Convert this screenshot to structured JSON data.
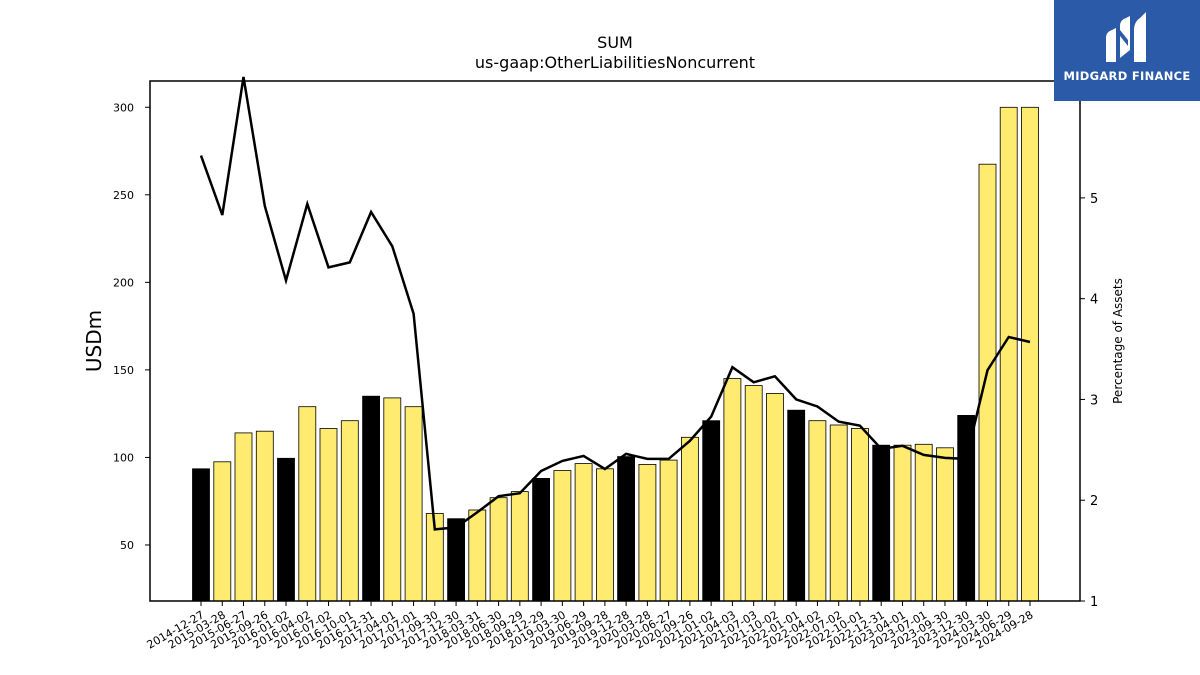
{
  "chart_data": {
    "type": "bar",
    "title_lines": [
      "SUM",
      "us-gaap:OtherLiabilitiesNoncurrent"
    ],
    "ylabel": "USDm",
    "ylabel_right": "Percentage of Assets",
    "ylim": [
      18,
      315
    ],
    "ylim_right": [
      1,
      6.16
    ],
    "yticks": [
      50,
      100,
      150,
      200,
      250,
      300
    ],
    "yticks_right": [
      1,
      2,
      3,
      4,
      5
    ],
    "grid": false,
    "categories": [
      "2014-12-27",
      "2015-03-28",
      "2015-06-27",
      "2015-09-26",
      "2016-01-02",
      "2016-04-02",
      "2016-07-02",
      "2016-10-01",
      "2016-12-31",
      "2017-04-01",
      "2017-07-01",
      "2017-09-30",
      "2017-12-30",
      "2018-03-31",
      "2018-06-30",
      "2018-09-29",
      "2018-12-29",
      "2019-03-30",
      "2019-06-29",
      "2019-09-28",
      "2019-12-28",
      "2020-03-28",
      "2020-06-27",
      "2020-09-26",
      "2021-01-02",
      "2021-04-03",
      "2021-07-03",
      "2021-10-02",
      "2022-01-01",
      "2022-04-02",
      "2022-07-02",
      "2022-10-01",
      "2022-12-31",
      "2023-04-01",
      "2023-07-01",
      "2023-09-30",
      "2023-12-30",
      "2024-03-30",
      "2024-06-29",
      "2024-09-28"
    ],
    "series": [
      {
        "type": "bar",
        "values": [
          93.5,
          97.5,
          114,
          115,
          99.5,
          129,
          116.5,
          121,
          135,
          134,
          129,
          68,
          65,
          70,
          77,
          80.5,
          88,
          92.5,
          96.5,
          93.5,
          100.5,
          96,
          98.5,
          111.5,
          121,
          145,
          141,
          136.5,
          127,
          121,
          118.5,
          116.5,
          107,
          107,
          107.5,
          105.5,
          124,
          267.5,
          300,
          300
        ],
        "highlight": [
          true,
          false,
          false,
          false,
          true,
          false,
          false,
          false,
          true,
          false,
          false,
          false,
          true,
          false,
          false,
          false,
          true,
          false,
          false,
          false,
          true,
          false,
          false,
          false,
          true,
          false,
          false,
          false,
          true,
          false,
          false,
          false,
          true,
          false,
          false,
          false,
          true,
          false,
          false,
          false
        ],
        "color": "#ffeb70",
        "highlight_color": "#000000"
      },
      {
        "type": "line",
        "axis": "right",
        "values": [
          5.42,
          4.83,
          6.2,
          4.92,
          4.18,
          4.94,
          4.31,
          4.36,
          4.86,
          4.52,
          3.85,
          1.71,
          1.73,
          1.88,
          2.04,
          2.07,
          2.29,
          2.39,
          2.44,
          2.31,
          2.46,
          2.41,
          2.41,
          2.59,
          2.83,
          3.32,
          3.17,
          3.23,
          3.0,
          2.93,
          2.78,
          2.74,
          2.51,
          2.54,
          2.45,
          2.42,
          2.41,
          3.29,
          3.62,
          3.57
        ],
        "color": "#000000"
      }
    ]
  },
  "logo": {
    "text": "MIDGARD FINANCE",
    "bg": "#2a5aa8"
  }
}
